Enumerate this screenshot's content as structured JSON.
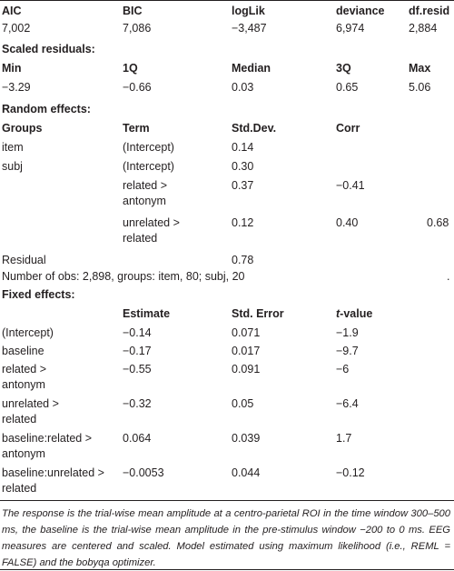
{
  "stats": {
    "header": [
      "AIC",
      "BIC",
      "logLik",
      "deviance",
      "df.resid"
    ],
    "values": [
      "7,002",
      "7,086",
      "−3,487",
      "6,974",
      "2,884"
    ]
  },
  "scaled_residuals": {
    "title": "Scaled residuals:",
    "header": [
      "Min",
      "1Q",
      "Median",
      "3Q",
      "Max"
    ],
    "values": [
      "−3.29",
      "−0.66",
      "0.03",
      "0.65",
      "5.06"
    ]
  },
  "random_effects": {
    "title": "Random effects:",
    "header": [
      "Groups",
      "Term",
      "Std.Dev.",
      "Corr"
    ],
    "rows": [
      {
        "group": "item",
        "term": [
          "(Intercept)"
        ],
        "std_dev": "0.14"
      },
      {
        "group": "subj",
        "term": [
          "(Intercept)"
        ],
        "std_dev": "0.30"
      },
      {
        "term": [
          "related >",
          "antonym"
        ],
        "std_dev": "0.37",
        "corr": [
          "−0.41"
        ]
      },
      {
        "term": [
          "unrelated >",
          "related"
        ],
        "std_dev": "0.12",
        "corr": [
          "0.40",
          "0.68"
        ]
      },
      {
        "group": "Residual",
        "std_dev": "0.78"
      }
    ],
    "summary": "Number of obs: 2,898, groups: item, 80; subj, 20",
    "summary_end": "."
  },
  "fixed_effects": {
    "title": "Fixed effects:",
    "header": [
      "Estimate",
      "Std. Error",
      "t-value"
    ],
    "rows": [
      {
        "term": [
          "(Intercept)"
        ],
        "estimate": "−0.14",
        "std_error": "0.071",
        "t_value": "−1.9"
      },
      {
        "term": [
          "baseline"
        ],
        "estimate": "−0.17",
        "std_error": "0.017",
        "t_value": "−9.7"
      },
      {
        "term": [
          "related >",
          "antonym"
        ],
        "estimate": "−0.55",
        "std_error": "0.091",
        "t_value": "−6"
      },
      {
        "term": [
          "unrelated >",
          "related"
        ],
        "estimate": "−0.32",
        "std_error": "0.05",
        "t_value": "−6.4"
      },
      {
        "term": [
          "baseline:related >",
          "antonym"
        ],
        "estimate": "0.064",
        "std_error": "0.039",
        "t_value": "1.7"
      },
      {
        "term": [
          "baseline:unrelated >",
          "related"
        ],
        "estimate": "−0.0053",
        "std_error": "0.044",
        "t_value": "−0.12"
      }
    ]
  },
  "note": "The response is the trial-wise mean amplitude at a centro-parietal ROI in the time window 300–500 ms, the baseline is the trial-wise mean amplitude in the pre-stimulus window −200 to 0 ms. EEG measures are centered and scaled. Model estimated using maximum likelihood (i.e., REML = FALSE) and the bobyqa optimizer."
}
